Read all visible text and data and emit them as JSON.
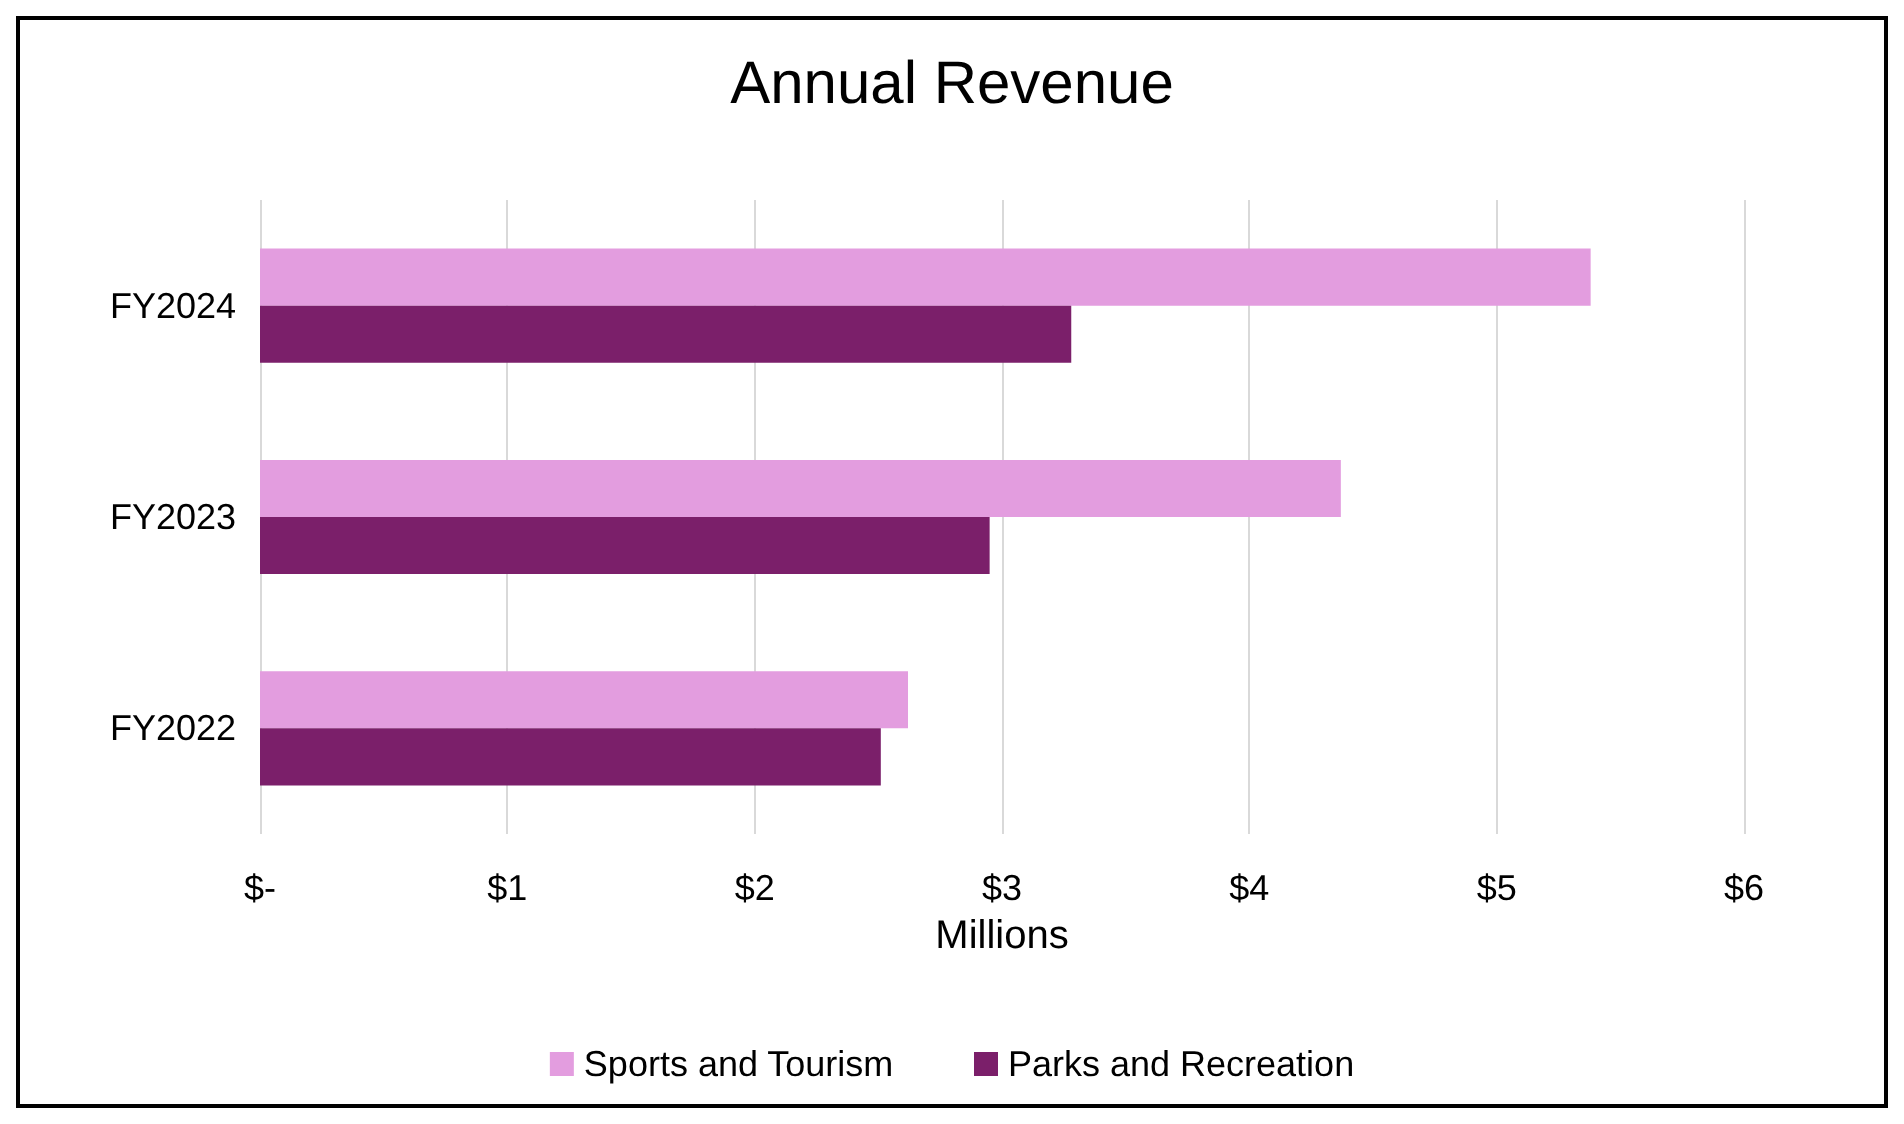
{
  "chart_data": {
    "type": "bar",
    "orientation": "horizontal",
    "title": "Annual Revenue",
    "xlabel": "Millions",
    "categories": [
      "FY2024",
      "FY2023",
      "FY2022"
    ],
    "series": [
      {
        "name": "Sports and Tourism",
        "color": "#e39ddf",
        "values": [
          5.38,
          4.37,
          2.62
        ]
      },
      {
        "name": "Parks and Recreation",
        "color": "#7b1f6a",
        "values": [
          3.28,
          2.95,
          2.51
        ]
      }
    ],
    "xlim": [
      0,
      6
    ],
    "xticks": [
      {
        "value": 0,
        "label": "$-"
      },
      {
        "value": 1,
        "label": "$1"
      },
      {
        "value": 2,
        "label": "$2"
      },
      {
        "value": 3,
        "label": "$3"
      },
      {
        "value": 4,
        "label": "$4"
      },
      {
        "value": 5,
        "label": "$5"
      },
      {
        "value": 6,
        "label": "$6"
      }
    ],
    "grid": "x",
    "legend": "bottom"
  }
}
